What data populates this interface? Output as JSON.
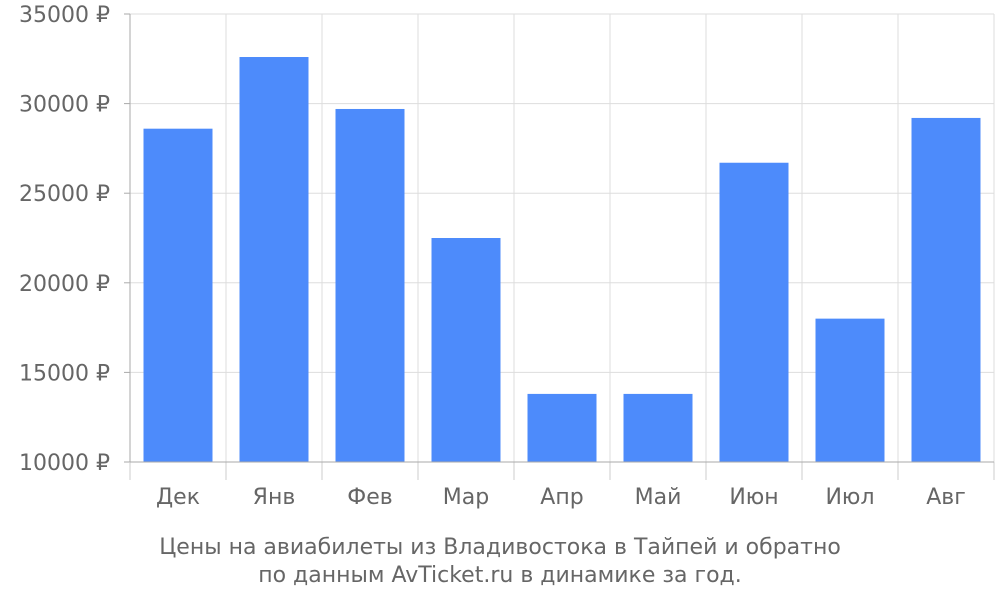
{
  "chart_data": {
    "type": "bar",
    "categories": [
      "Дек",
      "Янв",
      "Фев",
      "Мар",
      "Апр",
      "Май",
      "Июн",
      "Июл",
      "Авг"
    ],
    "values": [
      28600,
      32600,
      29700,
      22500,
      13800,
      13800,
      26700,
      18000,
      29200
    ],
    "ylim": [
      10000,
      35000
    ],
    "yticks": [
      10000,
      15000,
      20000,
      25000,
      30000,
      35000
    ],
    "ytick_labels": [
      "10000 ₽",
      "15000 ₽",
      "20000 ₽",
      "25000 ₽",
      "30000 ₽",
      "35000 ₽"
    ],
    "bar_color": "#4d8bfb",
    "grid": true
  },
  "caption": {
    "line1": "Цены на авиабилеты из Владивостока в Тайпей и обратно",
    "line2": "по данным AvTicket.ru в динамике за год."
  }
}
